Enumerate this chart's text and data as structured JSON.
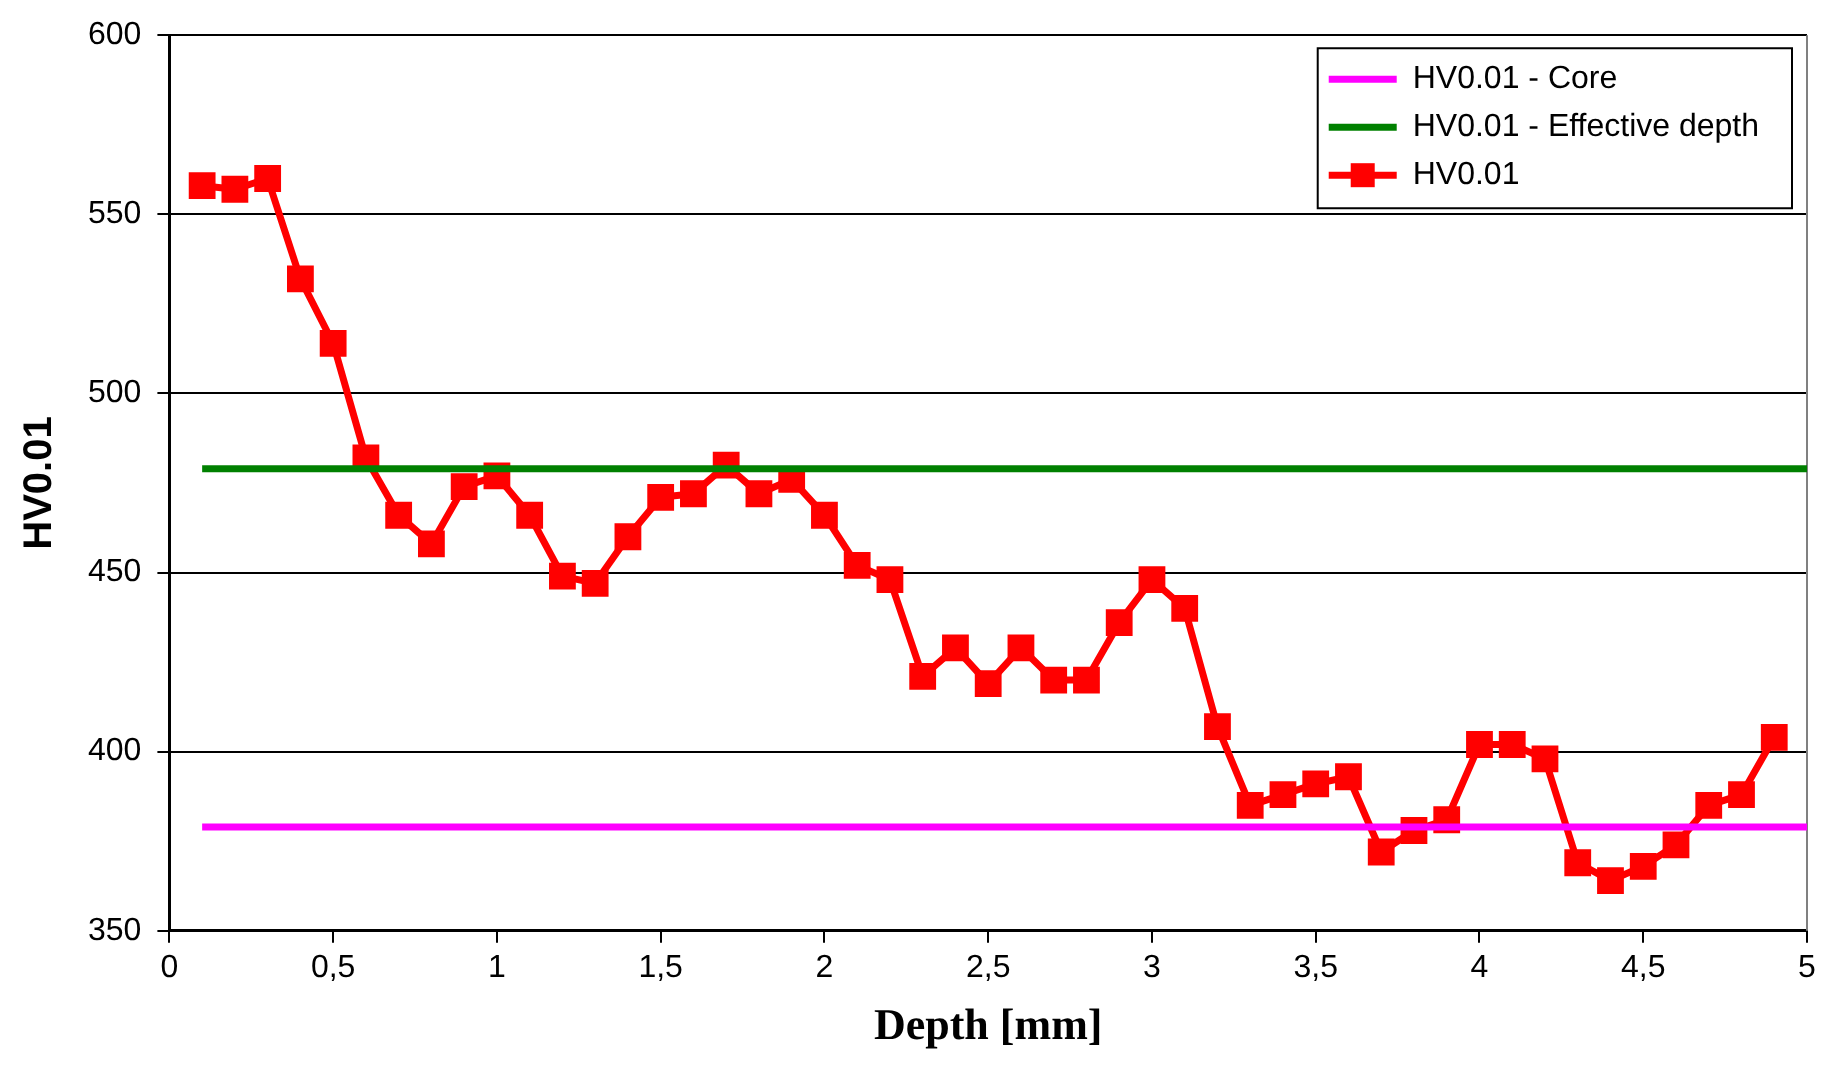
{
  "chart_data": {
    "type": "line",
    "xlabel": "Depth [mm]",
    "ylabel": "HV0.01",
    "xlim": [
      0,
      5
    ],
    "xticks": [
      0,
      {
        "value": 0.5,
        "label": "0,5"
      },
      1,
      {
        "value": 1.5,
        "label": "1,5"
      },
      2,
      {
        "value": 2.5,
        "label": "2,5"
      },
      3,
      {
        "value": 3.5,
        "label": "3,5"
      },
      4,
      {
        "value": 4.5,
        "label": "4,5"
      },
      5
    ],
    "ylim": [
      350,
      600
    ],
    "yticks": [
      350,
      400,
      450,
      500,
      550,
      600
    ],
    "grid": "y",
    "legend": "top right",
    "series": [
      {
        "name": "HV0.01 - Core",
        "color": "#ff00ff",
        "marker": "none",
        "x": [
          0.1,
          5
        ],
        "values": [
          379,
          379
        ]
      },
      {
        "name": "HV0.01 - Effective depth",
        "color": "#008000",
        "marker": "none",
        "x": [
          0.1,
          5
        ],
        "values": [
          479,
          479
        ]
      },
      {
        "name": "HV0.01",
        "color": "#ff0000",
        "marker": "square",
        "x": [
          0.1,
          0.2,
          0.3,
          0.4,
          0.5,
          0.6,
          0.7,
          0.8,
          0.9,
          1.0,
          1.1,
          1.2,
          1.3,
          1.4,
          1.5,
          1.6,
          1.7,
          1.8,
          1.9,
          2.0,
          2.1,
          2.2,
          2.3,
          2.4,
          2.5,
          2.6,
          2.7,
          2.8,
          2.9,
          3.0,
          3.1,
          3.2,
          3.3,
          3.4,
          3.5,
          3.6,
          3.7,
          3.8,
          3.9,
          4.0,
          4.1,
          4.2,
          4.3,
          4.4,
          4.5,
          4.6,
          4.7,
          4.8,
          4.9
        ],
        "values": [
          558,
          557,
          560,
          532,
          514,
          482,
          466,
          458,
          474,
          477,
          466,
          449,
          447,
          460,
          471,
          472,
          480,
          472,
          476,
          466,
          452,
          448,
          421,
          429,
          419,
          429,
          420,
          420,
          436,
          448,
          440,
          407,
          385,
          388,
          391,
          393,
          372,
          378,
          381,
          402,
          402,
          398,
          369,
          364,
          368,
          374,
          385,
          388,
          404
        ]
      }
    ]
  }
}
